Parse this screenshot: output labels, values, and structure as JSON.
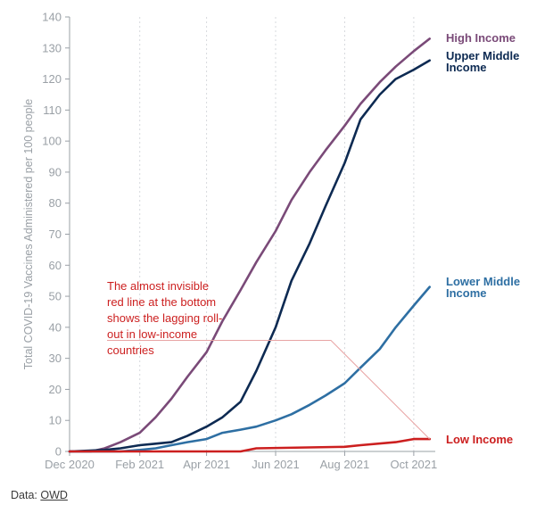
{
  "chart_data": {
    "type": "line",
    "ylabel": "Total COVID-19 Vaccines Administered per 100 people",
    "xlabel": "",
    "ylim": [
      0,
      140
    ],
    "yticks": [
      0,
      10,
      20,
      30,
      40,
      50,
      60,
      70,
      80,
      90,
      100,
      110,
      120,
      130,
      140
    ],
    "xlim": [
      "2020-12-01",
      "2021-10-20"
    ],
    "xticks": [
      {
        "date": "2020-12-01",
        "label": "Dec 2020"
      },
      {
        "date": "2021-02-01",
        "label": "Feb 2021"
      },
      {
        "date": "2021-04-01",
        "label": "Apr 2021"
      },
      {
        "date": "2021-06-01",
        "label": "Jun 2021"
      },
      {
        "date": "2021-08-01",
        "label": "Aug 2021"
      },
      {
        "date": "2021-10-01",
        "label": "Oct 2021"
      }
    ],
    "grid": "vertical-dashed",
    "series": [
      {
        "name": "High Income",
        "color": "#7a4a78",
        "points": [
          [
            "2020-12-01",
            0
          ],
          [
            "2020-12-20",
            0
          ],
          [
            "2021-01-01",
            1
          ],
          [
            "2021-01-15",
            3
          ],
          [
            "2021-02-01",
            6
          ],
          [
            "2021-02-15",
            11
          ],
          [
            "2021-03-01",
            17
          ],
          [
            "2021-03-15",
            24
          ],
          [
            "2021-04-01",
            32
          ],
          [
            "2021-04-15",
            42
          ],
          [
            "2021-05-01",
            52
          ],
          [
            "2021-05-15",
            61
          ],
          [
            "2021-06-01",
            71
          ],
          [
            "2021-06-15",
            81
          ],
          [
            "2021-07-01",
            90
          ],
          [
            "2021-07-15",
            97
          ],
          [
            "2021-08-01",
            105
          ],
          [
            "2021-08-15",
            112
          ],
          [
            "2021-09-01",
            119
          ],
          [
            "2021-09-15",
            124
          ],
          [
            "2021-10-01",
            129
          ],
          [
            "2021-10-15",
            133
          ]
        ]
      },
      {
        "name": "Upper Middle Income",
        "color": "#0d2a52",
        "points": [
          [
            "2020-12-01",
            0
          ],
          [
            "2021-01-01",
            0.5
          ],
          [
            "2021-01-15",
            1
          ],
          [
            "2021-02-01",
            2
          ],
          [
            "2021-02-15",
            2.5
          ],
          [
            "2021-03-01",
            3
          ],
          [
            "2021-03-15",
            5
          ],
          [
            "2021-04-01",
            8
          ],
          [
            "2021-04-15",
            11
          ],
          [
            "2021-05-01",
            16
          ],
          [
            "2021-05-15",
            26
          ],
          [
            "2021-06-01",
            40
          ],
          [
            "2021-06-15",
            55
          ],
          [
            "2021-07-01",
            67
          ],
          [
            "2021-07-15",
            79
          ],
          [
            "2021-08-01",
            93
          ],
          [
            "2021-08-15",
            107
          ],
          [
            "2021-09-01",
            115
          ],
          [
            "2021-09-15",
            120
          ],
          [
            "2021-10-01",
            123
          ],
          [
            "2021-10-15",
            126
          ]
        ]
      },
      {
        "name": "Lower Middle Income",
        "color": "#2e6fa3",
        "points": [
          [
            "2020-12-01",
            0
          ],
          [
            "2021-01-15",
            0
          ],
          [
            "2021-02-01",
            0.5
          ],
          [
            "2021-02-15",
            1
          ],
          [
            "2021-03-01",
            2
          ],
          [
            "2021-03-15",
            3
          ],
          [
            "2021-04-01",
            4
          ],
          [
            "2021-04-15",
            6
          ],
          [
            "2021-05-01",
            7
          ],
          [
            "2021-05-15",
            8
          ],
          [
            "2021-06-01",
            10
          ],
          [
            "2021-06-15",
            12
          ],
          [
            "2021-07-01",
            15
          ],
          [
            "2021-07-15",
            18
          ],
          [
            "2021-08-01",
            22
          ],
          [
            "2021-08-15",
            27
          ],
          [
            "2021-09-01",
            33
          ],
          [
            "2021-09-15",
            40
          ],
          [
            "2021-10-01",
            47
          ],
          [
            "2021-10-15",
            53
          ]
        ]
      },
      {
        "name": "Low Income",
        "color": "#cc1f1f",
        "points": [
          [
            "2020-12-01",
            0
          ],
          [
            "2021-05-01",
            0
          ],
          [
            "2021-05-15",
            1
          ],
          [
            "2021-08-01",
            1.5
          ],
          [
            "2021-08-15",
            2
          ],
          [
            "2021-09-15",
            3
          ],
          [
            "2021-10-01",
            4
          ],
          [
            "2021-10-15",
            4
          ]
        ]
      }
    ],
    "annotation": {
      "lines": [
        "The almost invisible",
        "red line at the bottom",
        "shows the lagging roll-",
        "out in low-income",
        "countries"
      ],
      "points_to": "Low Income"
    }
  },
  "series_labels": [
    {
      "lines": [
        "High Income"
      ],
      "color": "#7a4a78"
    },
    {
      "lines": [
        "Upper Middle",
        "Income"
      ],
      "color": "#0d2a52"
    },
    {
      "lines": [
        "Lower Middle",
        "Income"
      ],
      "color": "#2e6fa3"
    },
    {
      "lines": [
        "Low Income"
      ],
      "color": "#cc1f1f"
    }
  ],
  "source": {
    "prefix": "Data: ",
    "link_text": "OWD"
  }
}
